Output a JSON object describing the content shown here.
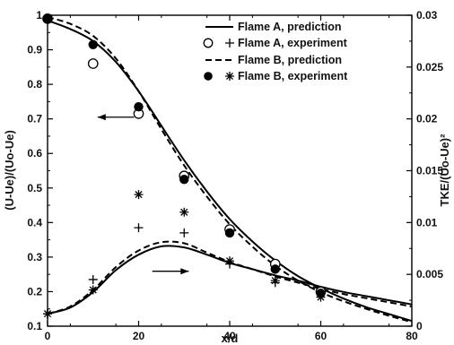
{
  "chart_data": {
    "type": "line",
    "xlabel": "x/d",
    "ylabel_left": "(U-Ue)/(Uo-Ue)",
    "ylabel_right": "TKE/(Uo-Ue)²",
    "xlim": [
      0,
      80
    ],
    "ylim_left": [
      0.1,
      1.0
    ],
    "ylim_right": [
      0,
      0.03
    ],
    "x_ticks": [
      0,
      20,
      40,
      60,
      80
    ],
    "y_left_ticks": [
      0.1,
      0.2,
      0.3,
      0.4,
      0.5,
      0.6,
      0.7,
      0.8,
      0.9,
      1.0
    ],
    "y_right_ticks": [
      0,
      0.005,
      0.01,
      0.015,
      0.02,
      0.025,
      0.03
    ],
    "x_tick_labels": [
      "0",
      "20",
      "40",
      "60",
      "80"
    ],
    "y_left_tick_labels": [
      "0.1",
      "0.2",
      "0.3",
      "0.4",
      "0.5",
      "0.6",
      "0.7",
      "0.8",
      "0.9",
      "1"
    ],
    "y_right_tick_labels": [
      "0",
      "0.005",
      "0.01",
      "0.015",
      "0.02",
      "0.025",
      "0.03"
    ],
    "grid": false,
    "legend_position": "top-right",
    "legend": [
      {
        "label": "Flame A, prediction",
        "style": "solid-line"
      },
      {
        "label": "Flame A, experiment",
        "style": "open-circle-plus"
      },
      {
        "label": "Flame B, prediction",
        "style": "dashed-line"
      },
      {
        "label": "Flame B, experiment",
        "style": "filled-circle-star"
      }
    ],
    "series": [
      {
        "name": "Flame A, prediction",
        "axis": "left",
        "quantity": "velocity",
        "style": "solid",
        "x": [
          0,
          5,
          10,
          15,
          20,
          25,
          30,
          35,
          40,
          45,
          50,
          55,
          60,
          65,
          70,
          75,
          80
        ],
        "y": [
          0.985,
          0.96,
          0.925,
          0.865,
          0.78,
          0.68,
          0.58,
          0.49,
          0.41,
          0.345,
          0.29,
          0.245,
          0.21,
          0.18,
          0.155,
          0.135,
          0.115
        ]
      },
      {
        "name": "Flame B, prediction",
        "axis": "left",
        "quantity": "velocity",
        "style": "dashed",
        "x": [
          0,
          5,
          10,
          15,
          20,
          25,
          30,
          35,
          40,
          45,
          50,
          55,
          60,
          65,
          70,
          75,
          80
        ],
        "y": [
          0.995,
          0.975,
          0.94,
          0.875,
          0.78,
          0.67,
          0.565,
          0.475,
          0.395,
          0.33,
          0.275,
          0.232,
          0.198,
          0.172,
          0.15,
          0.13,
          0.112
        ]
      },
      {
        "name": "Flame A, experiment",
        "axis": "left",
        "quantity": "velocity",
        "marker": "open-circle",
        "x": [
          0,
          10,
          20,
          30,
          40,
          50,
          60
        ],
        "y": [
          0.99,
          0.86,
          0.715,
          0.535,
          0.38,
          0.28,
          0.2
        ]
      },
      {
        "name": "Flame B, experiment",
        "axis": "left",
        "quantity": "velocity",
        "marker": "filled-circle",
        "x": [
          0,
          10,
          20,
          30,
          40,
          50,
          60
        ],
        "y": [
          0.99,
          0.915,
          0.735,
          0.525,
          0.37,
          0.265,
          0.195
        ]
      },
      {
        "name": "Flame A, prediction",
        "axis": "right",
        "quantity": "TKE",
        "style": "solid",
        "x": [
          0,
          5,
          10,
          15,
          20,
          25,
          30,
          35,
          40,
          45,
          50,
          55,
          60,
          65,
          70,
          75,
          80
        ],
        "y": [
          0.0012,
          0.0018,
          0.0033,
          0.0054,
          0.0069,
          0.0077,
          0.0076,
          0.0069,
          0.0061,
          0.0055,
          0.0049,
          0.0044,
          0.0038,
          0.0033,
          0.0029,
          0.0025,
          0.0021
        ]
      },
      {
        "name": "Flame B, prediction",
        "axis": "right",
        "quantity": "TKE",
        "style": "dashed",
        "x": [
          0,
          5,
          10,
          15,
          20,
          25,
          30,
          35,
          40,
          45,
          50,
          55,
          60,
          65,
          70,
          75,
          80
        ],
        "y": [
          0.0012,
          0.0019,
          0.0035,
          0.0057,
          0.0073,
          0.0081,
          0.008,
          0.0071,
          0.0062,
          0.0055,
          0.0048,
          0.0042,
          0.0036,
          0.0031,
          0.0027,
          0.0023,
          0.0019
        ]
      },
      {
        "name": "Flame A, experiment",
        "axis": "right",
        "quantity": "TKE",
        "marker": "plus",
        "x": [
          0,
          10,
          20,
          30,
          40,
          50,
          60
        ],
        "y": [
          0.0012,
          0.0045,
          0.0095,
          0.009,
          0.006,
          0.0042,
          0.0032
        ]
      },
      {
        "name": "Flame B, experiment",
        "axis": "right",
        "quantity": "TKE",
        "marker": "star",
        "x": [
          0,
          10,
          20,
          30,
          40,
          50,
          60
        ],
        "y": [
          0.0012,
          0.0035,
          0.0127,
          0.011,
          0.0063,
          0.0044,
          0.0028
        ]
      }
    ],
    "annotations": [
      {
        "type": "arrow",
        "direction": "left",
        "points_to": "left-axis",
        "x_range": [
          11,
          19
        ],
        "y_left": 0.705
      },
      {
        "type": "arrow",
        "direction": "right",
        "points_to": "right-axis",
        "x_range": [
          23,
          31
        ],
        "y_right": 0.0053
      }
    ]
  }
}
